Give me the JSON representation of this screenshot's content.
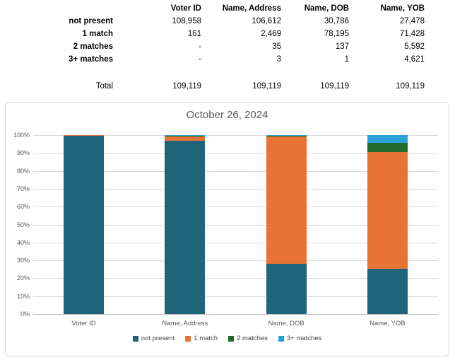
{
  "table": {
    "columns": [
      "Voter ID",
      "Name, Address",
      "Name, DOB",
      "Name, YOB"
    ],
    "rows": [
      {
        "label": "not present",
        "values": [
          "108,958",
          "106,612",
          "30,786",
          "27,478"
        ]
      },
      {
        "label": "1 match",
        "values": [
          "161",
          "2,469",
          "78,195",
          "71,428"
        ]
      },
      {
        "label": "2 matches",
        "values": [
          "-",
          "35",
          "137",
          "5,592"
        ]
      },
      {
        "label": "3+ matches",
        "values": [
          "-",
          "3",
          "1",
          "4,621"
        ]
      }
    ],
    "total": {
      "label": "Total",
      "values": [
        "109,119",
        "109,119",
        "109,119",
        "109,119"
      ]
    }
  },
  "chart_data": {
    "type": "bar",
    "subtype": "100-percent-stacked-column",
    "title": "October 26, 2024",
    "categories": [
      "Voter ID",
      "Name, Address",
      "Name, DOB",
      "Name, YOB"
    ],
    "series": [
      {
        "name": "not present",
        "color": "#1F6478",
        "values": [
          108958,
          106612,
          30786,
          27478
        ],
        "percents": [
          99.85,
          97.7,
          28.21,
          25.18
        ]
      },
      {
        "name": "1 match",
        "color": "#E77434",
        "values": [
          161,
          2469,
          78195,
          71428
        ],
        "percents": [
          0.15,
          2.26,
          71.66,
          65.46
        ]
      },
      {
        "name": "2 matches",
        "color": "#216C2A",
        "values": [
          0,
          35,
          137,
          5592
        ],
        "percents": [
          0,
          0.03,
          0.13,
          5.12
        ]
      },
      {
        "name": "3+ matches",
        "color": "#29A0D8",
        "values": [
          0,
          3,
          1,
          4621
        ],
        "percents": [
          0,
          0.003,
          0.001,
          4.23
        ]
      }
    ],
    "y_ticks": [
      "0%",
      "10%",
      "20%",
      "30%",
      "40%",
      "50%",
      "60%",
      "70%",
      "80%",
      "90%",
      "100%"
    ],
    "ylim": [
      0,
      100
    ],
    "grid": true,
    "legend_position": "bottom",
    "colors": {
      "grid": "#D9D9D9",
      "axis": "#BFBFBF",
      "label_text": "#595959",
      "legend_text": "#404040"
    }
  }
}
